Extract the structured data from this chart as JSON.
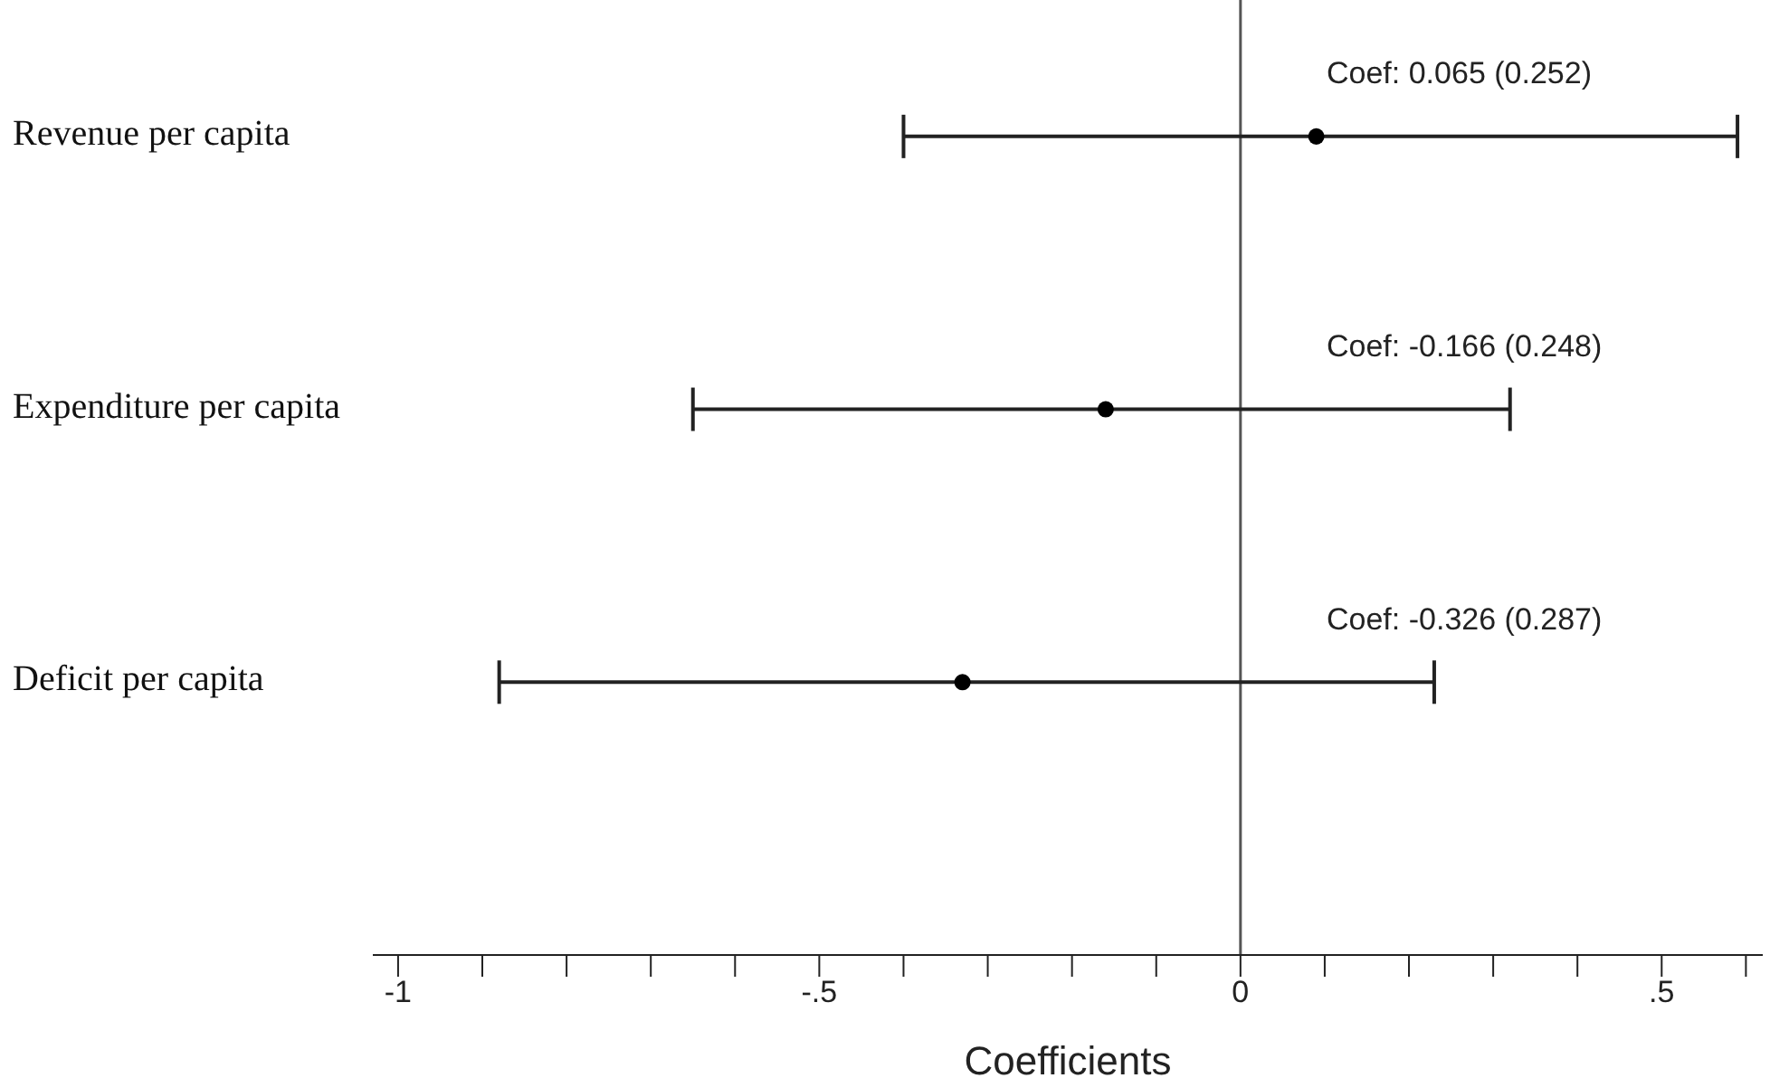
{
  "chart_data": {
    "type": "scatter",
    "xlabel": "Coefficients",
    "categories": [
      "Revenue per capita",
      "Expenditure per capita",
      "Deficit per capita"
    ],
    "values": [
      0.09,
      -0.16,
      -0.33
    ],
    "errors": [
      [
        -0.4,
        0.59
      ],
      [
        -0.65,
        0.32
      ],
      [
        -0.88,
        0.23
      ]
    ],
    "color": "#000000",
    "marker": "circle",
    "orientation": "horizontal",
    "xlim": [
      -1.03,
      0.62
    ],
    "xticks": [
      {
        "value": -1,
        "label": "-1"
      },
      {
        "value": -0.9,
        "label": null
      },
      {
        "value": -0.8,
        "label": null
      },
      {
        "value": -0.7,
        "label": null
      },
      {
        "value": -0.6,
        "label": null
      },
      {
        "value": -0.5,
        "label": "-.5"
      },
      {
        "value": -0.4,
        "label": null
      },
      {
        "value": -0.3,
        "label": null
      },
      {
        "value": -0.2,
        "label": null
      },
      {
        "value": -0.1,
        "label": null
      },
      {
        "value": 0,
        "label": "0"
      },
      {
        "value": 0.1,
        "label": null
      },
      {
        "value": 0.2,
        "label": null
      },
      {
        "value": 0.3,
        "label": null
      },
      {
        "value": 0.4,
        "label": null
      },
      {
        "value": 0.5,
        "label": ".5"
      },
      {
        "value": 0.6,
        "label": null
      }
    ],
    "ref_lines": [
      {
        "axis": "x",
        "value": 0,
        "color": "#555555"
      }
    ],
    "annotations": [
      "Coef: 0.065 (0.252)",
      "Coef: -0.166 (0.248)",
      "Coef: -0.326 (0.287)"
    ]
  }
}
